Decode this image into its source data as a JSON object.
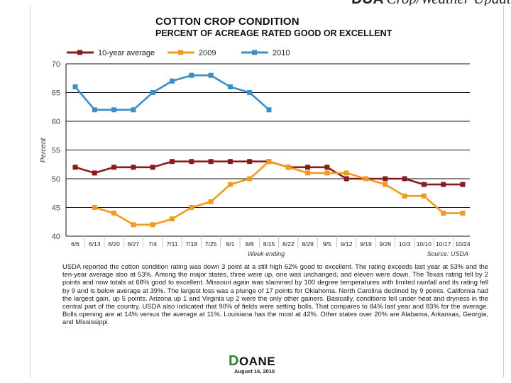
{
  "header": {
    "brand": "DUA",
    "subtitle": "Crop/Weather Update"
  },
  "chart_data": {
    "type": "line",
    "title": "COTTON CROP CONDITION",
    "subtitle": "PERCENT OF ACREAGE RATED GOOD OR EXCELLENT",
    "xlabel": "Week ending",
    "ylabel": "Percent",
    "ylim": [
      40,
      70
    ],
    "yticks": [
      40,
      45,
      50,
      55,
      60,
      65,
      70
    ],
    "grid": true,
    "legend": "top",
    "source": "Source: USDA",
    "categories": [
      "6/6",
      "6/13",
      "6/20",
      "6/27",
      "7/4",
      "7/11",
      "7/18",
      "7/25",
      "8/1",
      "8/8",
      "8/15",
      "8/22",
      "8/29",
      "9/5",
      "9/12",
      "9/19",
      "9/26",
      "10/3",
      "10/10",
      "10/17",
      "10/24"
    ],
    "series": [
      {
        "name": "10-year average",
        "color": "#8b1a1a",
        "values": [
          52,
          51,
          52,
          52,
          52,
          53,
          53,
          53,
          53,
          53,
          53,
          52,
          52,
          52,
          50,
          50,
          50,
          50,
          49,
          49,
          49
        ]
      },
      {
        "name": "2009",
        "color": "#f29a1f",
        "values": [
          null,
          45,
          44,
          42,
          42,
          43,
          45,
          46,
          49,
          50,
          53,
          52,
          51,
          51,
          51,
          50,
          49,
          47,
          47,
          44,
          44
        ]
      },
      {
        "name": "2010",
        "color": "#3a8fc9",
        "values": [
          66,
          62,
          62,
          62,
          65,
          67,
          68,
          68,
          66,
          65,
          62,
          null,
          null,
          null,
          null,
          null,
          null,
          null,
          null,
          null,
          null
        ]
      }
    ]
  },
  "body_text": "USDA reported the cotton condition rating was down 3 point at a still high 62% good to excellent. The rating exceeds last year at 53% and the ten-year average also at 53%. Among the major states, three were up, one was unchanged, and eleven were down. The Texas rating fell by 2 points and now totals at 68% good to excellent. Missouri again was slammed by 100 degree temperatures with limited rainfall and its rating fell by 9 and is below average at 39%. The largest loss was a plunge of 17 points for Oklahoma. North Carolina declined by 9 points. California had the largest gain, up 5 points. Arizona up 1 and Virginia up 2 were the only other gainers. Basically, conditions fell under heat and dryness in the central part of the country. USDA also indicated that 90% of fields were setting bolls. That compares to 84% last year and 83% for the average. Bolls opening are at 14% versus the average at 11%. Louisiana has the most at 42%. Other states over 20% are Alabama, Arkansas, Georgia, and Mississippi.",
  "footer": {
    "logo_initial": "D",
    "logo_rest": "OANE",
    "date": "August 16, 2010"
  }
}
